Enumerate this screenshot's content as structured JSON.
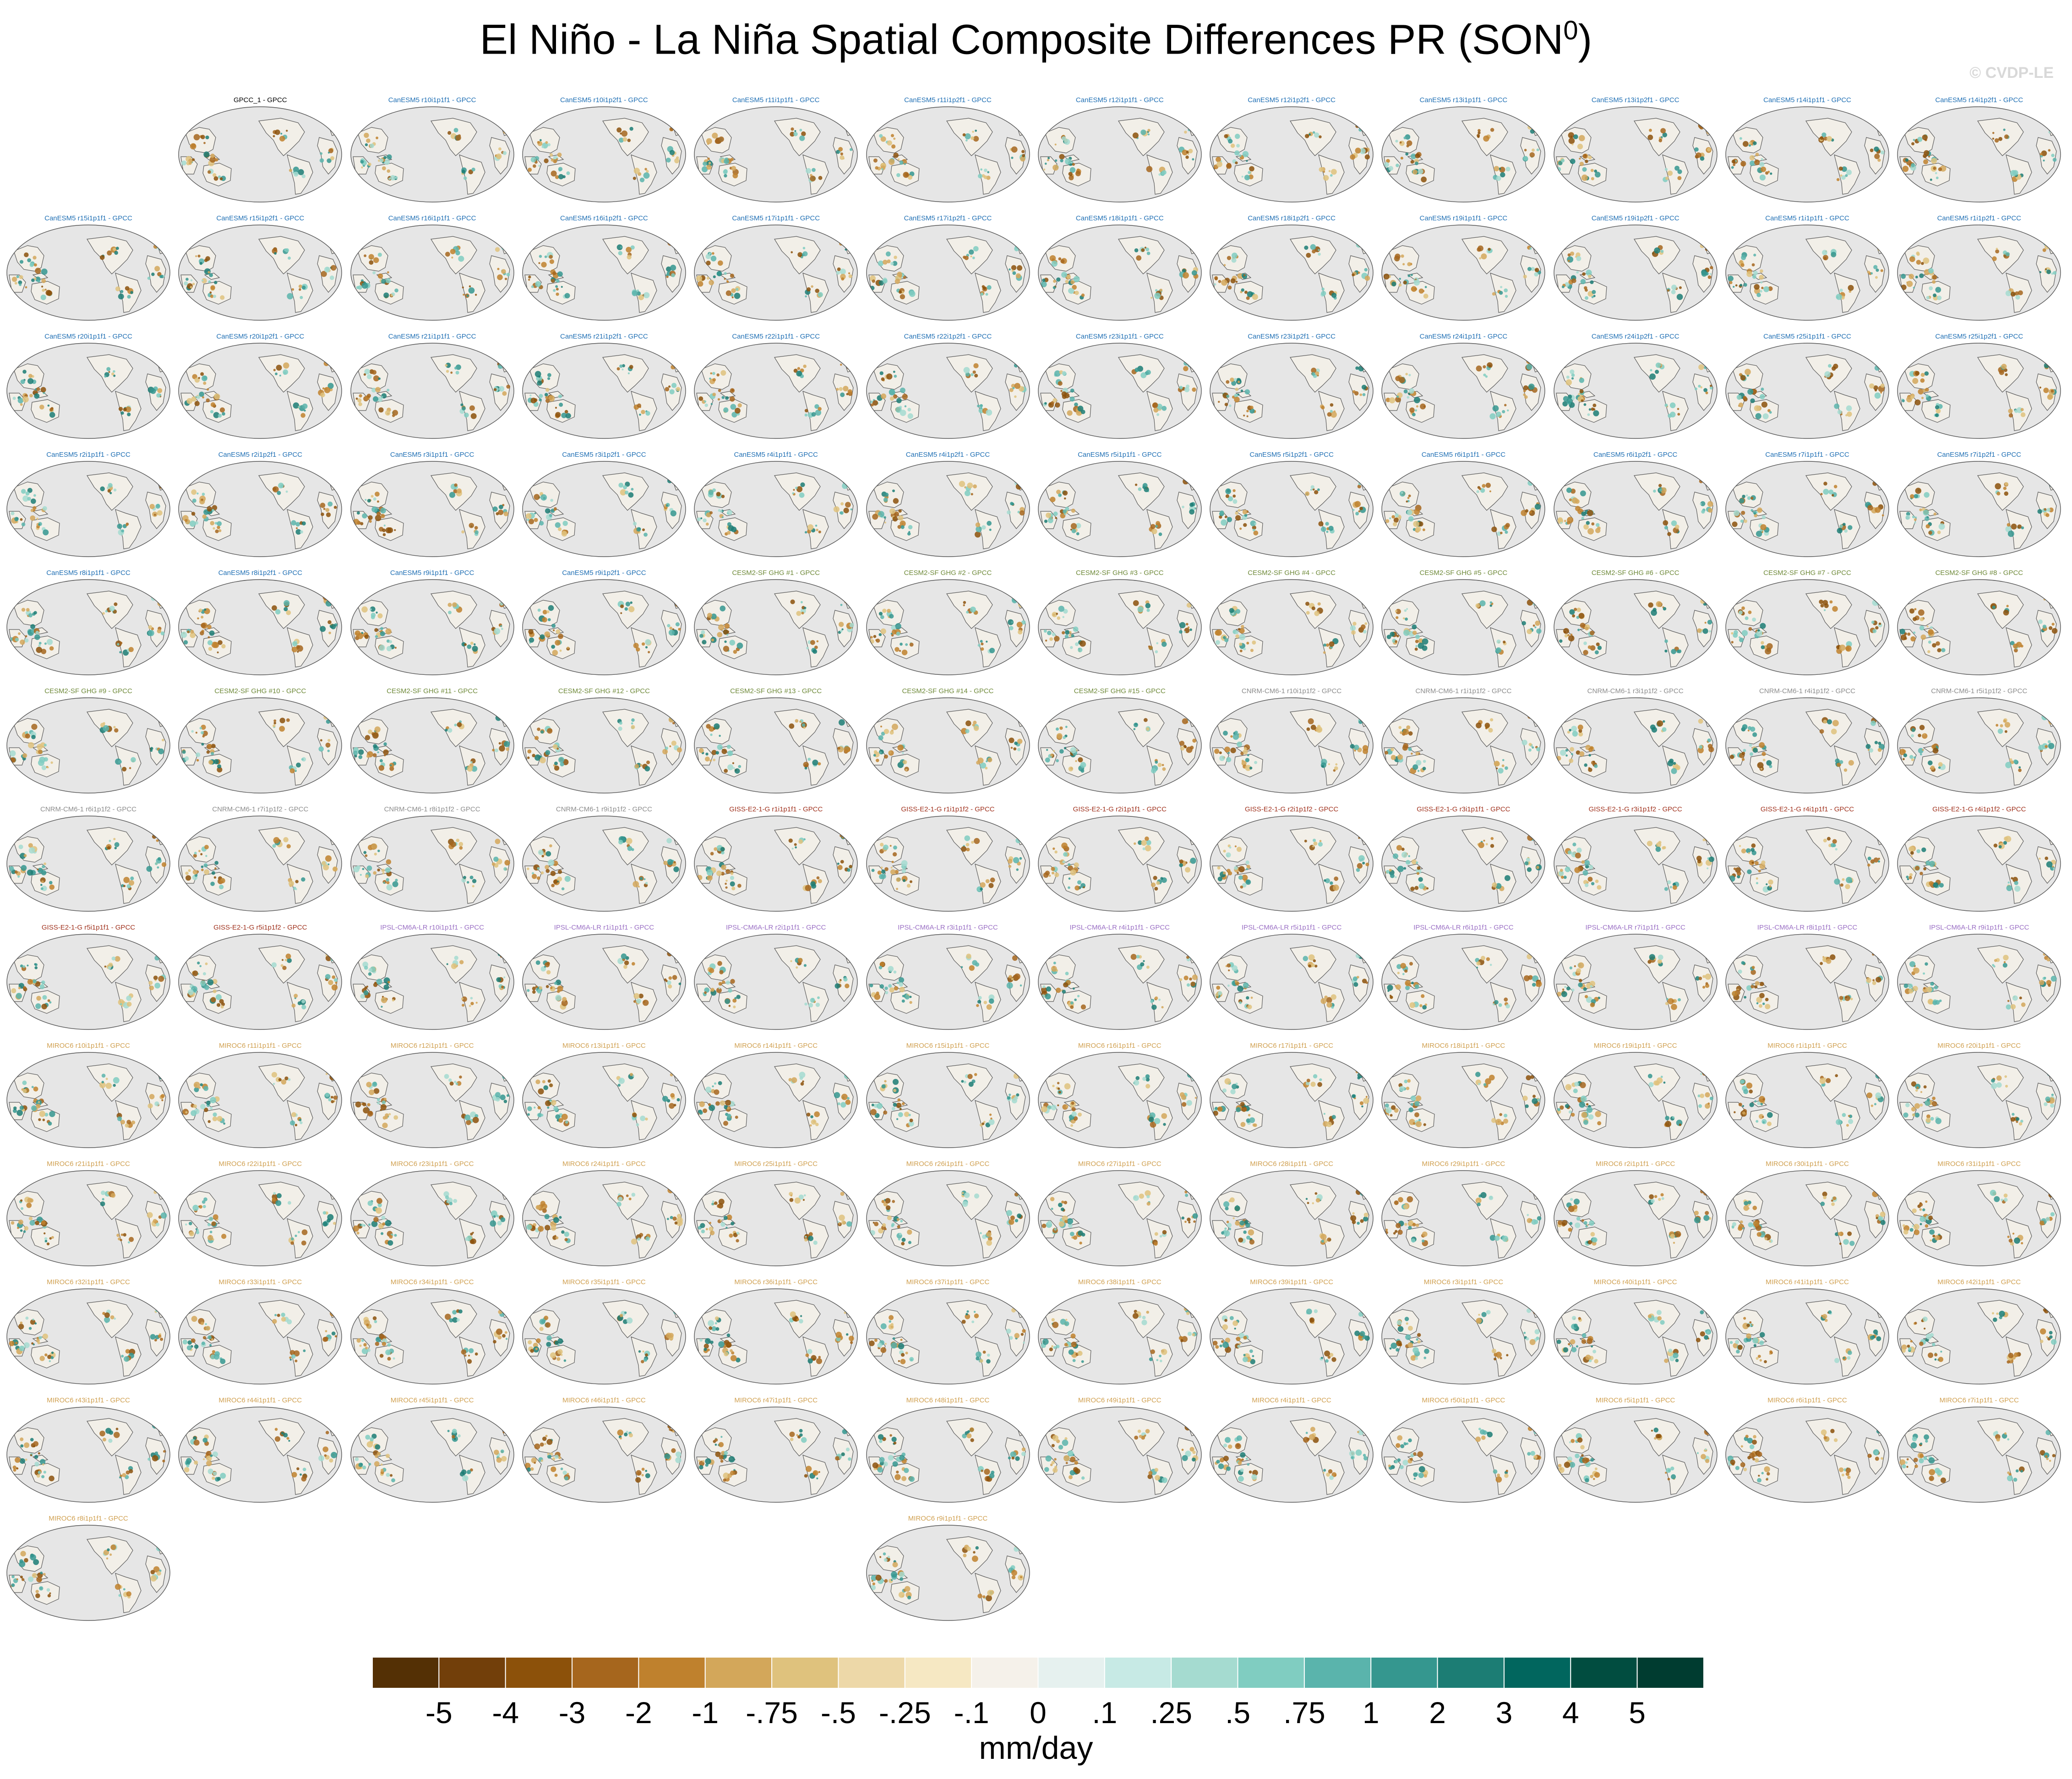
{
  "title_main": "El Niño - La Niña Spatial Composite Differences PR (SON",
  "title_sup": "0",
  "title_end": ")",
  "watermark": "© CVDP-LE",
  "units": "mm/day",
  "panels": [
    {
      "label": "GPCC_1 - GPCC",
      "group": "obs"
    },
    {
      "label": "CanESM5 r10i1p1f1 - GPCC",
      "group": "CanESM5"
    },
    {
      "label": "CanESM5 r10i1p2f1 - GPCC",
      "group": "CanESM5"
    },
    {
      "label": "CanESM5 r11i1p1f1 - GPCC",
      "group": "CanESM5"
    },
    {
      "label": "CanESM5 r11i1p2f1 - GPCC",
      "group": "CanESM5"
    },
    {
      "label": "CanESM5 r12i1p1f1 - GPCC",
      "group": "CanESM5"
    },
    {
      "label": "CanESM5 r12i1p2f1 - GPCC",
      "group": "CanESM5"
    },
    {
      "label": "CanESM5 r13i1p1f1 - GPCC",
      "group": "CanESM5"
    },
    {
      "label": "CanESM5 r13i1p2f1 - GPCC",
      "group": "CanESM5"
    },
    {
      "label": "CanESM5 r14i1p1f1 - GPCC",
      "group": "CanESM5"
    },
    {
      "label": "CanESM5 r14i1p2f1 - GPCC",
      "group": "CanESM5"
    },
    {
      "label": "CanESM5 r15i1p1f1 - GPCC",
      "group": "CanESM5"
    },
    {
      "label": "CanESM5 r15i1p2f1 - GPCC",
      "group": "CanESM5"
    },
    {
      "label": "CanESM5 r16i1p1f1 - GPCC",
      "group": "CanESM5"
    },
    {
      "label": "CanESM5 r16i1p2f1 - GPCC",
      "group": "CanESM5"
    },
    {
      "label": "CanESM5 r17i1p1f1 - GPCC",
      "group": "CanESM5"
    },
    {
      "label": "CanESM5 r17i1p2f1 - GPCC",
      "group": "CanESM5"
    },
    {
      "label": "CanESM5 r18i1p1f1 - GPCC",
      "group": "CanESM5"
    },
    {
      "label": "CanESM5 r18i1p2f1 - GPCC",
      "group": "CanESM5"
    },
    {
      "label": "CanESM5 r19i1p1f1 - GPCC",
      "group": "CanESM5"
    },
    {
      "label": "CanESM5 r19i1p2f1 - GPCC",
      "group": "CanESM5"
    },
    {
      "label": "CanESM5 r1i1p1f1 - GPCC",
      "group": "CanESM5"
    },
    {
      "label": "CanESM5 r1i1p2f1 - GPCC",
      "group": "CanESM5"
    },
    {
      "label": "CanESM5 r20i1p1f1 - GPCC",
      "group": "CanESM5"
    },
    {
      "label": "CanESM5 r20i1p2f1 - GPCC",
      "group": "CanESM5"
    },
    {
      "label": "CanESM5 r21i1p1f1 - GPCC",
      "group": "CanESM5"
    },
    {
      "label": "CanESM5 r21i1p2f1 - GPCC",
      "group": "CanESM5"
    },
    {
      "label": "CanESM5 r22i1p1f1 - GPCC",
      "group": "CanESM5"
    },
    {
      "label": "CanESM5 r22i1p2f1 - GPCC",
      "group": "CanESM5"
    },
    {
      "label": "CanESM5 r23i1p1f1 - GPCC",
      "group": "CanESM5"
    },
    {
      "label": "CanESM5 r23i1p2f1 - GPCC",
      "group": "CanESM5"
    },
    {
      "label": "CanESM5 r24i1p1f1 - GPCC",
      "group": "CanESM5"
    },
    {
      "label": "CanESM5 r24i1p2f1 - GPCC",
      "group": "CanESM5"
    },
    {
      "label": "CanESM5 r25i1p1f1 - GPCC",
      "group": "CanESM5"
    },
    {
      "label": "CanESM5 r25i1p2f1 - GPCC",
      "group": "CanESM5"
    },
    {
      "label": "CanESM5 r2i1p1f1 - GPCC",
      "group": "CanESM5"
    },
    {
      "label": "CanESM5 r2i1p2f1 - GPCC",
      "group": "CanESM5"
    },
    {
      "label": "CanESM5 r3i1p1f1 - GPCC",
      "group": "CanESM5"
    },
    {
      "label": "CanESM5 r3i1p2f1 - GPCC",
      "group": "CanESM5"
    },
    {
      "label": "CanESM5 r4i1p1f1 - GPCC",
      "group": "CanESM5"
    },
    {
      "label": "CanESM5 r4i1p2f1 - GPCC",
      "group": "CanESM5"
    },
    {
      "label": "CanESM5 r5i1p1f1 - GPCC",
      "group": "CanESM5"
    },
    {
      "label": "CanESM5 r5i1p2f1 - GPCC",
      "group": "CanESM5"
    },
    {
      "label": "CanESM5 r6i1p1f1 - GPCC",
      "group": "CanESM5"
    },
    {
      "label": "CanESM5 r6i1p2f1 - GPCC",
      "group": "CanESM5"
    },
    {
      "label": "CanESM5 r7i1p1f1 - GPCC",
      "group": "CanESM5"
    },
    {
      "label": "CanESM5 r7i1p2f1 - GPCC",
      "group": "CanESM5"
    },
    {
      "label": "CanESM5 r8i1p1f1 - GPCC",
      "group": "CanESM5"
    },
    {
      "label": "CanESM5 r8i1p2f1 - GPCC",
      "group": "CanESM5"
    },
    {
      "label": "CanESM5 r9i1p1f1 - GPCC",
      "group": "CanESM5"
    },
    {
      "label": "CanESM5 r9i1p2f1 - GPCC",
      "group": "CanESM5"
    },
    {
      "label": "CESM2-SF GHG #1 - GPCC",
      "group": "CESM2"
    },
    {
      "label": "CESM2-SF GHG #2 - GPCC",
      "group": "CESM2"
    },
    {
      "label": "CESM2-SF GHG #3 - GPCC",
      "group": "CESM2"
    },
    {
      "label": "CESM2-SF GHG #4 - GPCC",
      "group": "CESM2"
    },
    {
      "label": "CESM2-SF GHG #5 - GPCC",
      "group": "CESM2"
    },
    {
      "label": "CESM2-SF GHG #6 - GPCC",
      "group": "CESM2"
    },
    {
      "label": "CESM2-SF GHG #7 - GPCC",
      "group": "CESM2"
    },
    {
      "label": "CESM2-SF GHG #8 - GPCC",
      "group": "CESM2"
    },
    {
      "label": "CESM2-SF GHG #9 - GPCC",
      "group": "CESM2"
    },
    {
      "label": "CESM2-SF GHG #10 - GPCC",
      "group": "CESM2"
    },
    {
      "label": "CESM2-SF GHG #11 - GPCC",
      "group": "CESM2"
    },
    {
      "label": "CESM2-SF GHG #12 - GPCC",
      "group": "CESM2"
    },
    {
      "label": "CESM2-SF GHG #13 - GPCC",
      "group": "CESM2"
    },
    {
      "label": "CESM2-SF GHG #14 - GPCC",
      "group": "CESM2"
    },
    {
      "label": "CESM2-SF GHG #15 - GPCC",
      "group": "CESM2"
    },
    {
      "label": "CNRM-CM6-1 r10i1p1f2 - GPCC",
      "group": "CNRM"
    },
    {
      "label": "CNRM-CM6-1 r1i1p1f2 - GPCC",
      "group": "CNRM"
    },
    {
      "label": "CNRM-CM6-1 r3i1p1f2 - GPCC",
      "group": "CNRM"
    },
    {
      "label": "CNRM-CM6-1 r4i1p1f2 - GPCC",
      "group": "CNRM"
    },
    {
      "label": "CNRM-CM6-1 r5i1p1f2 - GPCC",
      "group": "CNRM"
    },
    {
      "label": "CNRM-CM6-1 r6i1p1f2 - GPCC",
      "group": "CNRM"
    },
    {
      "label": "CNRM-CM6-1 r7i1p1f2 - GPCC",
      "group": "CNRM"
    },
    {
      "label": "CNRM-CM6-1 r8i1p1f2 - GPCC",
      "group": "CNRM"
    },
    {
      "label": "CNRM-CM6-1 r9i1p1f2 - GPCC",
      "group": "CNRM"
    },
    {
      "label": "GISS-E2-1-G r1i1p1f1 - GPCC",
      "group": "GISS"
    },
    {
      "label": "GISS-E2-1-G r1i1p1f2 - GPCC",
      "group": "GISS"
    },
    {
      "label": "GISS-E2-1-G r2i1p1f1 - GPCC",
      "group": "GISS"
    },
    {
      "label": "GISS-E2-1-G r2i1p1f2 - GPCC",
      "group": "GISS"
    },
    {
      "label": "GISS-E2-1-G r3i1p1f1 - GPCC",
      "group": "GISS"
    },
    {
      "label": "GISS-E2-1-G r3i1p1f2 - GPCC",
      "group": "GISS"
    },
    {
      "label": "GISS-E2-1-G r4i1p1f1 - GPCC",
      "group": "GISS"
    },
    {
      "label": "GISS-E2-1-G r4i1p1f2 - GPCC",
      "group": "GISS"
    },
    {
      "label": "GISS-E2-1-G r5i1p1f1 - GPCC",
      "group": "GISS"
    },
    {
      "label": "GISS-E2-1-G r5i1p1f2 - GPCC",
      "group": "GISS"
    },
    {
      "label": "IPSL-CM6A-LR r10i1p1f1 - GPCC",
      "group": "IPSL"
    },
    {
      "label": "IPSL-CM6A-LR r1i1p1f1 - GPCC",
      "group": "IPSL"
    },
    {
      "label": "IPSL-CM6A-LR r2i1p1f1 - GPCC",
      "group": "IPSL"
    },
    {
      "label": "IPSL-CM6A-LR r3i1p1f1 - GPCC",
      "group": "IPSL"
    },
    {
      "label": "IPSL-CM6A-LR r4i1p1f1 - GPCC",
      "group": "IPSL"
    },
    {
      "label": "IPSL-CM6A-LR r5i1p1f1 - GPCC",
      "group": "IPSL"
    },
    {
      "label": "IPSL-CM6A-LR r6i1p1f1 - GPCC",
      "group": "IPSL"
    },
    {
      "label": "IPSL-CM6A-LR r7i1p1f1 - GPCC",
      "group": "IPSL"
    },
    {
      "label": "IPSL-CM6A-LR r8i1p1f1 - GPCC",
      "group": "IPSL"
    },
    {
      "label": "IPSL-CM6A-LR r9i1p1f1 - GPCC",
      "group": "IPSL"
    },
    {
      "label": "MIROC6 r10i1p1f1 - GPCC",
      "group": "MIROC6"
    },
    {
      "label": "MIROC6 r11i1p1f1 - GPCC",
      "group": "MIROC6"
    },
    {
      "label": "MIROC6 r12i1p1f1 - GPCC",
      "group": "MIROC6"
    },
    {
      "label": "MIROC6 r13i1p1f1 - GPCC",
      "group": "MIROC6"
    },
    {
      "label": "MIROC6 r14i1p1f1 - GPCC",
      "group": "MIROC6"
    },
    {
      "label": "MIROC6 r15i1p1f1 - GPCC",
      "group": "MIROC6"
    },
    {
      "label": "MIROC6 r16i1p1f1 - GPCC",
      "group": "MIROC6"
    },
    {
      "label": "MIROC6 r17i1p1f1 - GPCC",
      "group": "MIROC6"
    },
    {
      "label": "MIROC6 r18i1p1f1 - GPCC",
      "group": "MIROC6"
    },
    {
      "label": "MIROC6 r19i1p1f1 - GPCC",
      "group": "MIROC6"
    },
    {
      "label": "MIROC6 r1i1p1f1 - GPCC",
      "group": "MIROC6"
    },
    {
      "label": "MIROC6 r20i1p1f1 - GPCC",
      "group": "MIROC6"
    },
    {
      "label": "MIROC6 r21i1p1f1 - GPCC",
      "group": "MIROC6"
    },
    {
      "label": "MIROC6 r22i1p1f1 - GPCC",
      "group": "MIROC6"
    },
    {
      "label": "MIROC6 r23i1p1f1 - GPCC",
      "group": "MIROC6"
    },
    {
      "label": "MIROC6 r24i1p1f1 - GPCC",
      "group": "MIROC6"
    },
    {
      "label": "MIROC6 r25i1p1f1 - GPCC",
      "group": "MIROC6"
    },
    {
      "label": "MIROC6 r26i1p1f1 - GPCC",
      "group": "MIROC6"
    },
    {
      "label": "MIROC6 r27i1p1f1 - GPCC",
      "group": "MIROC6"
    },
    {
      "label": "MIROC6 r28i1p1f1 - GPCC",
      "group": "MIROC6"
    },
    {
      "label": "MIROC6 r29i1p1f1 - GPCC",
      "group": "MIROC6"
    },
    {
      "label": "MIROC6 r2i1p1f1 - GPCC",
      "group": "MIROC6"
    },
    {
      "label": "MIROC6 r30i1p1f1 - GPCC",
      "group": "MIROC6"
    },
    {
      "label": "MIROC6 r31i1p1f1 - GPCC",
      "group": "MIROC6"
    },
    {
      "label": "MIROC6 r32i1p1f1 - GPCC",
      "group": "MIROC6"
    },
    {
      "label": "MIROC6 r33i1p1f1 - GPCC",
      "group": "MIROC6"
    },
    {
      "label": "MIROC6 r34i1p1f1 - GPCC",
      "group": "MIROC6"
    },
    {
      "label": "MIROC6 r35i1p1f1 - GPCC",
      "group": "MIROC6"
    },
    {
      "label": "MIROC6 r36i1p1f1 - GPCC",
      "group": "MIROC6"
    },
    {
      "label": "MIROC6 r37i1p1f1 - GPCC",
      "group": "MIROC6"
    },
    {
      "label": "MIROC6 r38i1p1f1 - GPCC",
      "group": "MIROC6"
    },
    {
      "label": "MIROC6 r39i1p1f1 - GPCC",
      "group": "MIROC6"
    },
    {
      "label": "MIROC6 r3i1p1f1 - GPCC",
      "group": "MIROC6"
    },
    {
      "label": "MIROC6 r40i1p1f1 - GPCC",
      "group": "MIROC6"
    },
    {
      "label": "MIROC6 r41i1p1f1 - GPCC",
      "group": "MIROC6"
    },
    {
      "label": "MIROC6 r42i1p1f1 - GPCC",
      "group": "MIROC6"
    },
    {
      "label": "MIROC6 r43i1p1f1 - GPCC",
      "group": "MIROC6"
    },
    {
      "label": "MIROC6 r44i1p1f1 - GPCC",
      "group": "MIROC6"
    },
    {
      "label": "MIROC6 r45i1p1f1 - GPCC",
      "group": "MIROC6"
    },
    {
      "label": "MIROC6 r46i1p1f1 - GPCC",
      "group": "MIROC6"
    },
    {
      "label": "MIROC6 r47i1p1f1 - GPCC",
      "group": "MIROC6"
    },
    {
      "label": "MIROC6 r48i1p1f1 - GPCC",
      "group": "MIROC6"
    },
    {
      "label": "MIROC6 r49i1p1f1 - GPCC",
      "group": "MIROC6"
    },
    {
      "label": "MIROC6 r4i1p1f1 - GPCC",
      "group": "MIROC6"
    },
    {
      "label": "MIROC6 r50i1p1f1 - GPCC",
      "group": "MIROC6"
    },
    {
      "label": "MIROC6 r5i1p1f1 - GPCC",
      "group": "MIROC6"
    },
    {
      "label": "MIROC6 r6i1p1f1 - GPCC",
      "group": "MIROC6"
    },
    {
      "label": "MIROC6 r7i1p1f1 - GPCC",
      "group": "MIROC6"
    },
    {
      "label": "MIROC6 r8i1p1f1 - GPCC",
      "group": "MIROC6"
    },
    {
      "label": "MIROC6 r9i1p1f1 - GPCC",
      "group": "MIROC6"
    }
  ],
  "group_colors": {
    "obs": "#000000",
    "CanESM5": "#1f6fb4",
    "CESM2": "#6f8a3a",
    "CNRM": "#8c8c8c",
    "GISS": "#a0321e",
    "IPSL": "#9a6fc4",
    "MIROC6": "#d0a050"
  },
  "map_colors": {
    "ocean": "#e6e6e6",
    "land": "#f2efe8",
    "coast": "#5a5a5a"
  },
  "chart_data": {
    "type": "heatmap",
    "colorbar": {
      "tick_labels": [
        "-5",
        "-4",
        "-3",
        "-2",
        "-1",
        "-.75",
        "-.5",
        "-.25",
        "-.1",
        "0",
        ".1",
        ".25",
        ".5",
        ".75",
        "1",
        "2",
        "3",
        "4",
        "5"
      ],
      "colors": [
        "#543005",
        "#723f0a",
        "#8c510a",
        "#a6661d",
        "#bf812d",
        "#d3a75a",
        "#dfc27d",
        "#edd8a8",
        "#f6e8c3",
        "#f5f1ea",
        "#e6f1ef",
        "#c7eae5",
        "#a5dbd0",
        "#80cdc1",
        "#5ab4ac",
        "#35978f",
        "#1c7d74",
        "#01665e",
        "#014d40",
        "#003c30"
      ],
      "units": "mm/day"
    }
  }
}
